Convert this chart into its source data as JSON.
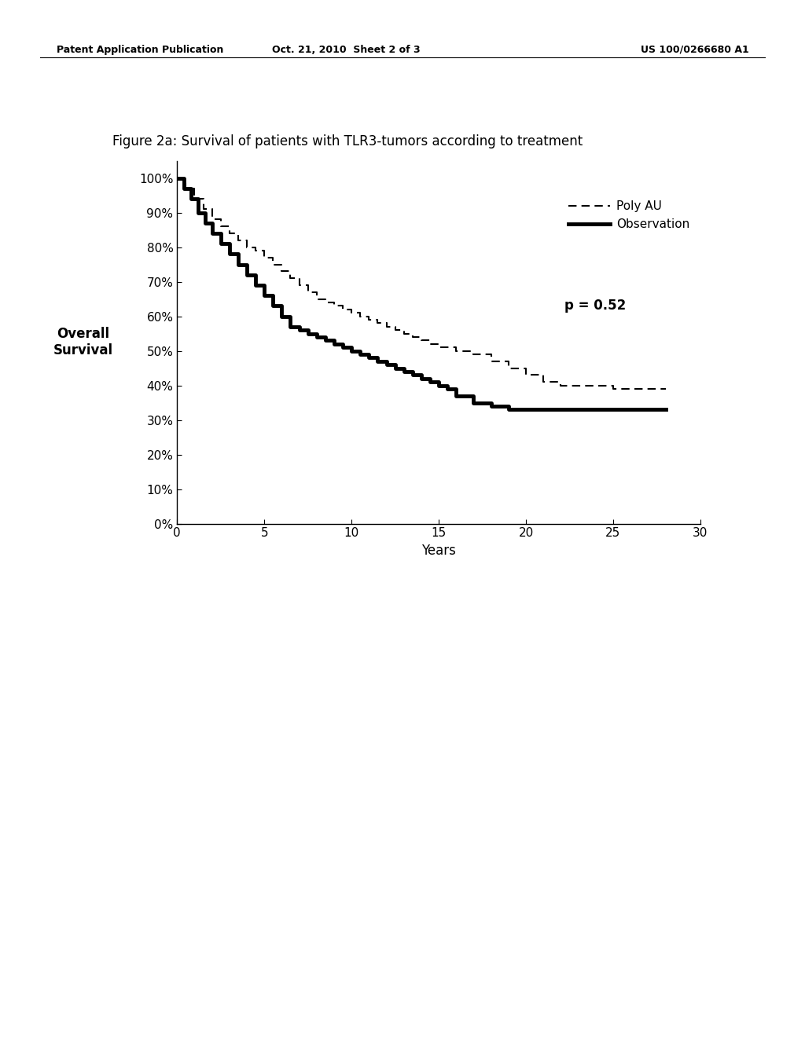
{
  "title": "Figure 2a: Survival of patients with TLR3-tumors according to treatment",
  "xlabel": "Years",
  "ylabel": "Overall\nSurvival",
  "xlim": [
    0,
    30
  ],
  "ylim": [
    0,
    1.05
  ],
  "xticks": [
    0,
    5,
    10,
    15,
    20,
    25,
    30
  ],
  "yticks": [
    0.0,
    0.1,
    0.2,
    0.3,
    0.4,
    0.5,
    0.6,
    0.7,
    0.8,
    0.9,
    1.0
  ],
  "ytick_labels": [
    "0%",
    "10%",
    "20%",
    "30%",
    "40%",
    "50%",
    "60%",
    "70%",
    "80%",
    "90%",
    "100%"
  ],
  "p_value_text": "p = 0.52",
  "background_color": "#ffffff",
  "header_left": "Patent Application Publication",
  "header_center": "Oct. 21, 2010  Sheet 2 of 3",
  "header_right": "US 100/0266680 A1",
  "poly_au_x": [
    0,
    0.5,
    1,
    1.5,
    2,
    2.5,
    3,
    3.5,
    4,
    4.5,
    5,
    5.5,
    6,
    6.5,
    7,
    7.5,
    8,
    8.5,
    9,
    9.5,
    10,
    10.5,
    11,
    11.5,
    12,
    12.5,
    13,
    13.5,
    14,
    14.5,
    15,
    16,
    17,
    18,
    19,
    20,
    21,
    22,
    23,
    24,
    25,
    26,
    27,
    28
  ],
  "poly_au_y": [
    1.0,
    0.97,
    0.94,
    0.91,
    0.88,
    0.86,
    0.84,
    0.82,
    0.8,
    0.79,
    0.77,
    0.75,
    0.73,
    0.71,
    0.69,
    0.67,
    0.65,
    0.64,
    0.63,
    0.62,
    0.61,
    0.6,
    0.59,
    0.58,
    0.57,
    0.56,
    0.55,
    0.54,
    0.53,
    0.52,
    0.51,
    0.5,
    0.49,
    0.47,
    0.45,
    0.43,
    0.41,
    0.4,
    0.4,
    0.4,
    0.39,
    0.39,
    0.39,
    0.39
  ],
  "obs_x": [
    0,
    0.4,
    0.8,
    1.2,
    1.6,
    2.0,
    2.5,
    3.0,
    3.5,
    4.0,
    4.5,
    5.0,
    5.5,
    6.0,
    6.5,
    7.0,
    7.5,
    8.0,
    8.5,
    9.0,
    9.5,
    10.0,
    10.5,
    11.0,
    11.5,
    12.0,
    12.5,
    13.0,
    13.5,
    14.0,
    14.5,
    15.0,
    15.5,
    16.0,
    17.0,
    18.0,
    19.0,
    20.0,
    21.0,
    22.0,
    23.0,
    24.0,
    25.0,
    26.0,
    27.0,
    28.0
  ],
  "obs_y": [
    1.0,
    0.97,
    0.94,
    0.9,
    0.87,
    0.84,
    0.81,
    0.78,
    0.75,
    0.72,
    0.69,
    0.66,
    0.63,
    0.6,
    0.57,
    0.56,
    0.55,
    0.54,
    0.53,
    0.52,
    0.51,
    0.5,
    0.49,
    0.48,
    0.47,
    0.46,
    0.45,
    0.44,
    0.43,
    0.42,
    0.41,
    0.4,
    0.39,
    0.37,
    0.35,
    0.34,
    0.33,
    0.33,
    0.33,
    0.33,
    0.33,
    0.33,
    0.33,
    0.33,
    0.33,
    0.33
  ]
}
